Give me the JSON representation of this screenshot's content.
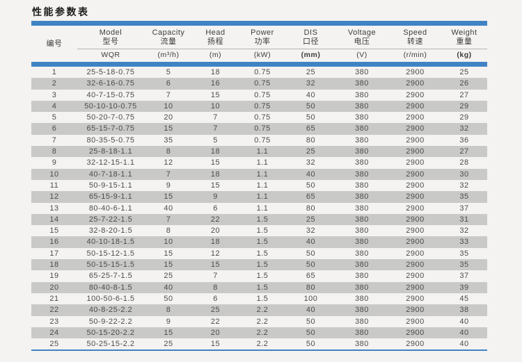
{
  "title": "性能参数表",
  "colors": {
    "accent_blue": "#3f83c5",
    "stripe_gray": "#c9c9c8",
    "page_background": "#f4f3f1"
  },
  "table": {
    "columns": [
      {
        "en": "",
        "zh": "编号",
        "unit": ""
      },
      {
        "en": "Model",
        "zh": "型号",
        "unit": "WQR"
      },
      {
        "en": "Capacity",
        "zh": "流量",
        "unit": "(m³/h)"
      },
      {
        "en": "Head",
        "zh": "扬程",
        "unit": "(m)"
      },
      {
        "en": "Power",
        "zh": "功率",
        "unit": "(kW)"
      },
      {
        "en": "DIS",
        "zh": "口径",
        "unit": "(mm)"
      },
      {
        "en": "Voltage",
        "zh": "电压",
        "unit": "(V)"
      },
      {
        "en": "Speed",
        "zh": "转速",
        "unit": "(r/min)"
      },
      {
        "en": "Weight",
        "zh": "重量",
        "unit": "(kg)"
      }
    ],
    "rows": [
      [
        "1",
        "25-5-18-0.75",
        "5",
        "18",
        "0.75",
        "25",
        "380",
        "2900",
        "25"
      ],
      [
        "2",
        "32-6-16-0.75",
        "6",
        "16",
        "0.75",
        "32",
        "380",
        "2900",
        "26"
      ],
      [
        "3",
        "40-7-15-0.75",
        "7",
        "15",
        "0.75",
        "40",
        "380",
        "2900",
        "27"
      ],
      [
        "4",
        "50-10-10-0.75",
        "10",
        "10",
        "0.75",
        "50",
        "380",
        "2900",
        "29"
      ],
      [
        "5",
        "50-20-7-0.75",
        "20",
        "7",
        "0.75",
        "50",
        "380",
        "2900",
        "29"
      ],
      [
        "6",
        "65-15-7-0.75",
        "15",
        "7",
        "0.75",
        "65",
        "380",
        "2900",
        "32"
      ],
      [
        "7",
        "80-35-5-0.75",
        "35",
        "5",
        "0.75",
        "80",
        "380",
        "2900",
        "36"
      ],
      [
        "8",
        "25-8-18-1.1",
        "8",
        "18",
        "1.1",
        "25",
        "380",
        "2900",
        "27"
      ],
      [
        "9",
        "32-12-15-1.1",
        "12",
        "15",
        "1.1",
        "32",
        "380",
        "2900",
        "28"
      ],
      [
        "10",
        "40-7-18-1.1",
        "7",
        "18",
        "1.1",
        "40",
        "380",
        "2900",
        "30"
      ],
      [
        "11",
        "50-9-15-1.1",
        "9",
        "15",
        "1.1",
        "50",
        "380",
        "2900",
        "32"
      ],
      [
        "12",
        "65-15-9-1.1",
        "15",
        "9",
        "1.1",
        "65",
        "380",
        "2900",
        "35"
      ],
      [
        "13",
        "80-40-6-1.1",
        "40",
        "6",
        "1.1",
        "80",
        "380",
        "2900",
        "37"
      ],
      [
        "14",
        "25-7-22-1.5",
        "7",
        "22",
        "1.5",
        "25",
        "380",
        "2900",
        "31"
      ],
      [
        "15",
        "32-8-20-1.5",
        "8",
        "20",
        "1.5",
        "32",
        "380",
        "2900",
        "32"
      ],
      [
        "16",
        "40-10-18-1.5",
        "10",
        "18",
        "1.5",
        "40",
        "380",
        "2900",
        "33"
      ],
      [
        "17",
        "50-15-12-1.5",
        "15",
        "12",
        "1.5",
        "50",
        "380",
        "2900",
        "35"
      ],
      [
        "18",
        "50-15-15-1.5",
        "15",
        "15",
        "1.5",
        "50",
        "380",
        "2900",
        "35"
      ],
      [
        "19",
        "65-25-7-1.5",
        "25",
        "7",
        "1.5",
        "65",
        "380",
        "2900",
        "37"
      ],
      [
        "20",
        "80-40-8-1.5",
        "40",
        "8",
        "1.5",
        "80",
        "380",
        "2900",
        "39"
      ],
      [
        "21",
        "100-50-6-1.5",
        "50",
        "6",
        "1.5",
        "100",
        "380",
        "2900",
        "45"
      ],
      [
        "22",
        "40-8-25-2.2",
        "8",
        "25",
        "2.2",
        "40",
        "380",
        "2900",
        "38"
      ],
      [
        "23",
        "50-9-22-2.2",
        "9",
        "22",
        "2.2",
        "50",
        "380",
        "2900",
        "40"
      ],
      [
        "24",
        "50-15-20-2.2",
        "15",
        "20",
        "2.2",
        "50",
        "380",
        "2900",
        "40"
      ],
      [
        "25",
        "50-25-15-2.2",
        "25",
        "15",
        "2.2",
        "50",
        "380",
        "2900",
        "40"
      ]
    ]
  }
}
